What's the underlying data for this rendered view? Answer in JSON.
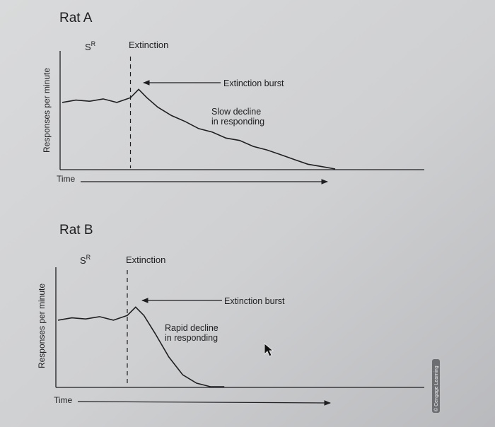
{
  "credit": "© Cengage Learning",
  "chart_data": [
    {
      "type": "line",
      "title": "Rat A",
      "xlabel": "Time",
      "ylabel": "Responses per minute",
      "phase_labels": [
        "S",
        "Extinction"
      ],
      "phase_sup": "R",
      "annotations": [
        "Extinction burst",
        "Slow decline",
        "in responding"
      ],
      "x": [
        0,
        5,
        10,
        15,
        20,
        25,
        28,
        31,
        35,
        40,
        45,
        50,
        55,
        60,
        65,
        70,
        75,
        80,
        85,
        90,
        95,
        100
      ],
      "values": [
        0.56,
        0.58,
        0.57,
        0.59,
        0.56,
        0.6,
        0.67,
        0.6,
        0.52,
        0.45,
        0.4,
        0.34,
        0.31,
        0.26,
        0.24,
        0.19,
        0.16,
        0.12,
        0.08,
        0.04,
        0.02,
        0.0
      ],
      "baseline_end_x": 25,
      "grid": false,
      "legend": "none"
    },
    {
      "type": "line",
      "title": "Rat B",
      "xlabel": "Time",
      "ylabel": "Responses per minute",
      "phase_labels": [
        "S",
        "Extinction"
      ],
      "phase_sup": "R",
      "annotations": [
        "Extinction burst",
        "Rapid decline",
        "in responding"
      ],
      "x": [
        0,
        5,
        10,
        15,
        20,
        25,
        28,
        31,
        35,
        40,
        45,
        50,
        55,
        60
      ],
      "values": [
        0.56,
        0.58,
        0.57,
        0.59,
        0.56,
        0.6,
        0.67,
        0.6,
        0.45,
        0.25,
        0.1,
        0.03,
        0.0,
        0.0
      ],
      "baseline_end_x": 25,
      "grid": false,
      "legend": "none"
    }
  ]
}
